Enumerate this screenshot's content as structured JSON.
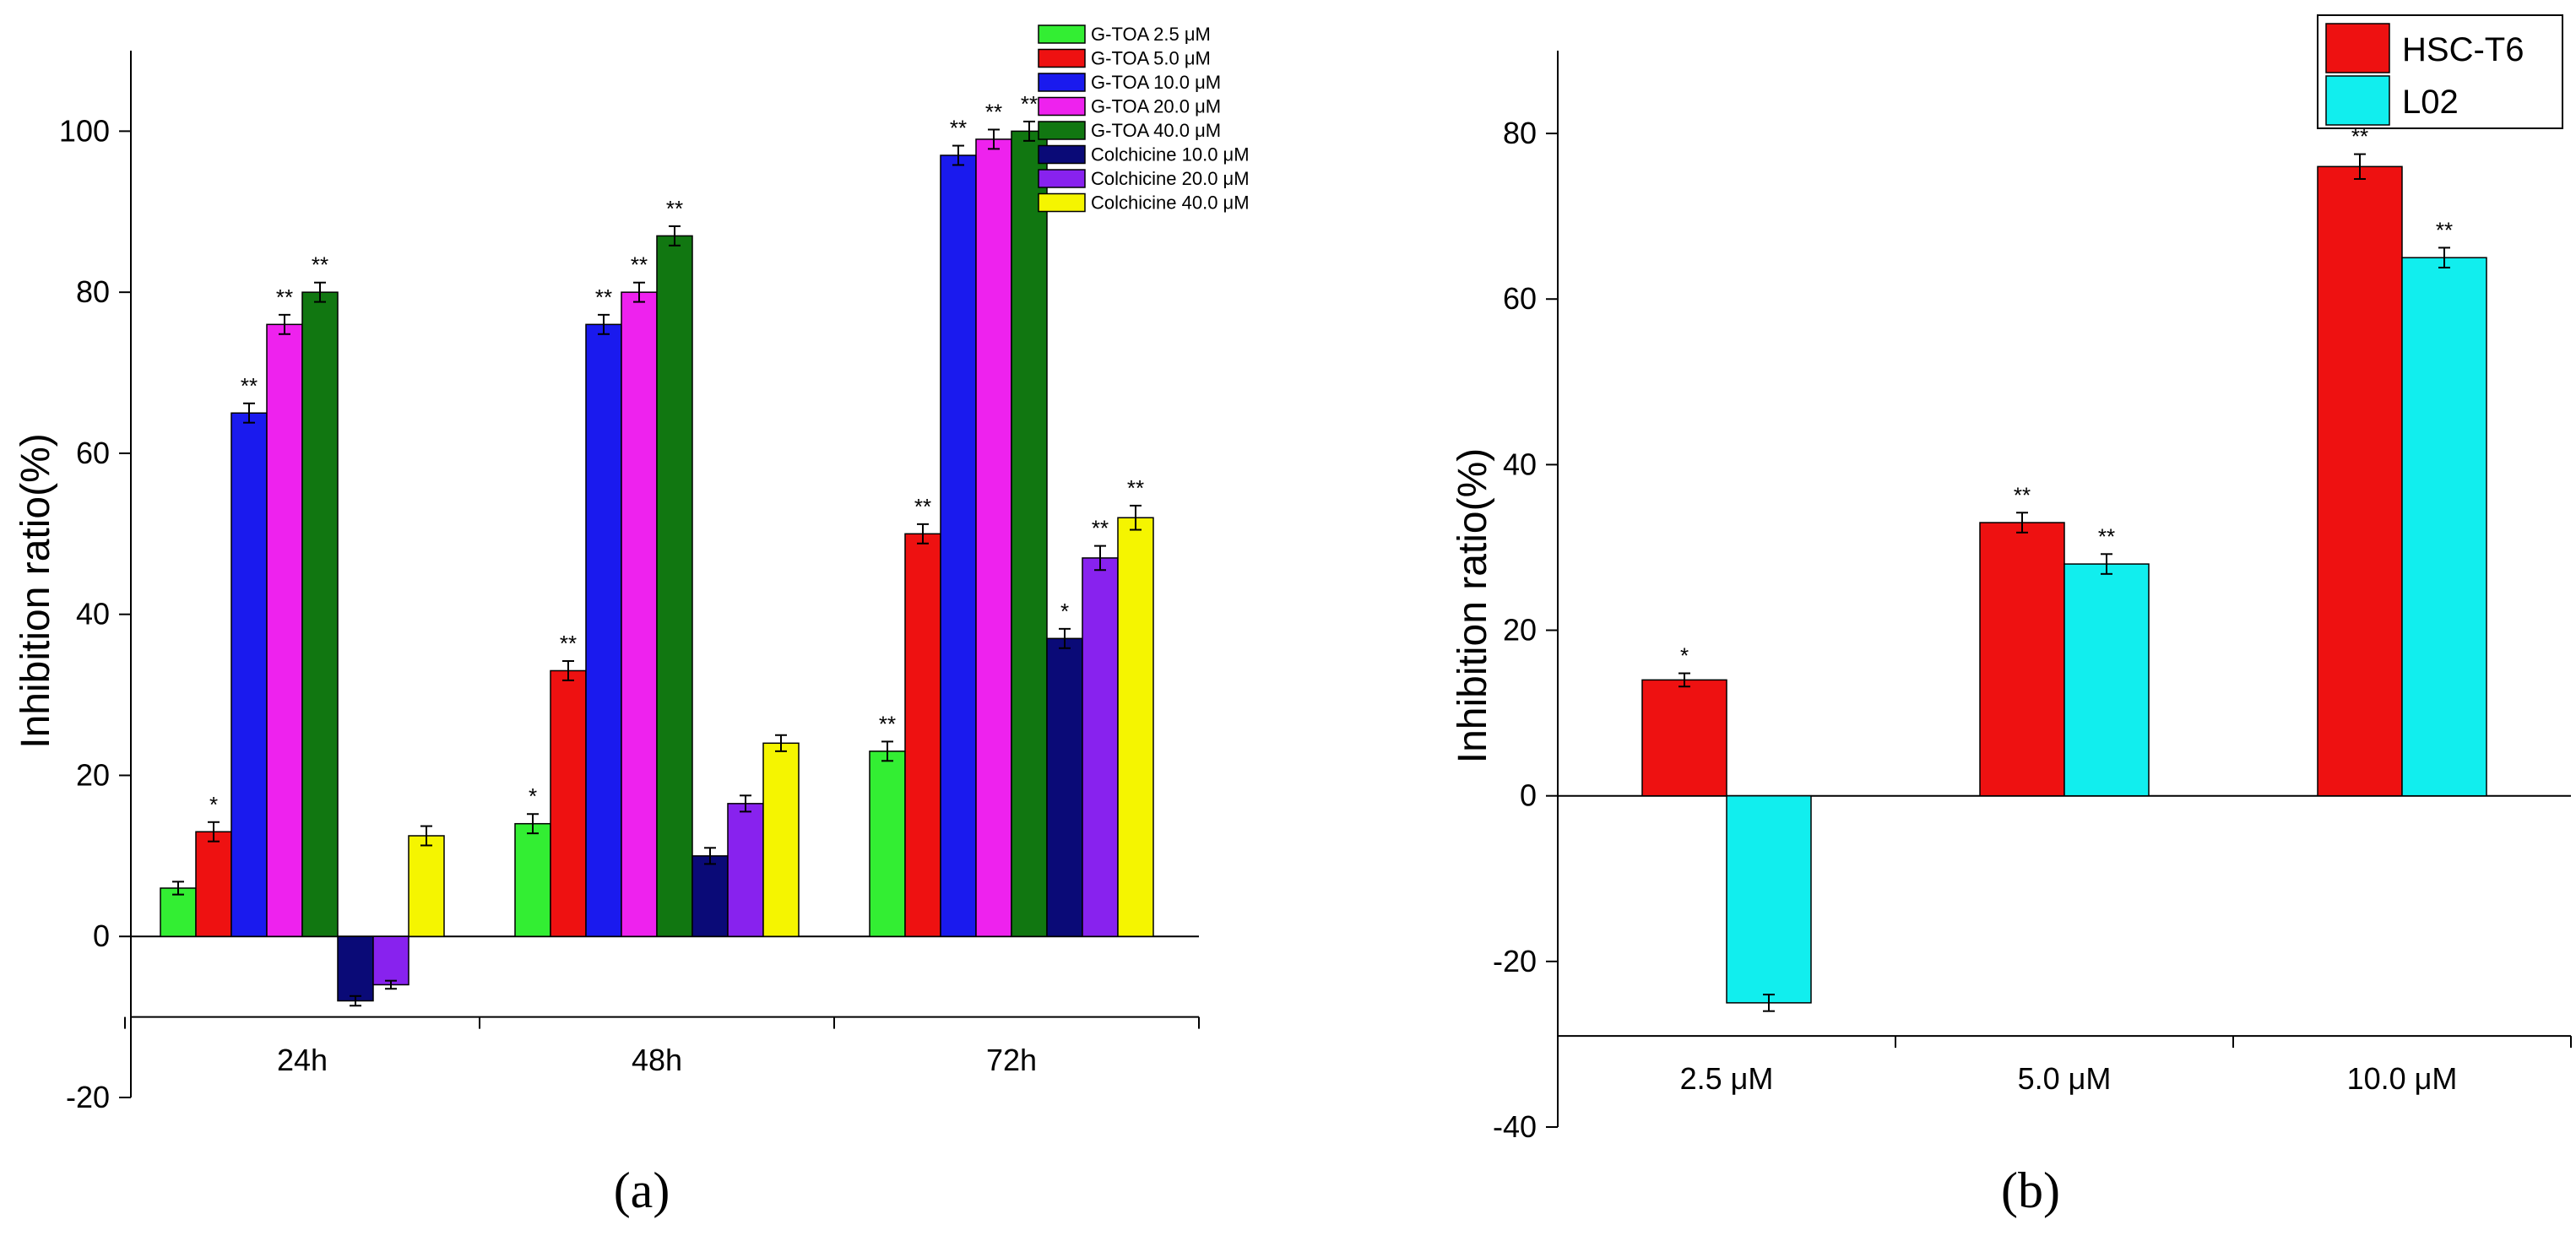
{
  "chart_data": [
    {
      "type": "bar",
      "panel_label": "(a)",
      "ylabel": "Inhibition ratio(%)",
      "xlabel": "",
      "ylim": [
        -20,
        110
      ],
      "yticks": [
        -20,
        0,
        20,
        40,
        60,
        80,
        100
      ],
      "categories": [
        "24h",
        "48h",
        "72h"
      ],
      "legend_position": "top-right",
      "series": [
        {
          "name": "G-TOA 2.5 μM",
          "color": "#33ee33",
          "values": [
            6,
            14,
            23
          ],
          "errors": [
            0.8,
            1.2,
            1.2
          ],
          "stars": [
            "",
            "*",
            "**"
          ]
        },
        {
          "name": "G-TOA 5.0 μM",
          "color": "#ee1111",
          "values": [
            13,
            33,
            50
          ],
          "errors": [
            1.2,
            1.2,
            1.2
          ],
          "stars": [
            "*",
            "**",
            "**"
          ]
        },
        {
          "name": "G-TOA 10.0 μM",
          "color": "#1a1aee",
          "values": [
            65,
            76,
            97
          ],
          "errors": [
            1.2,
            1.2,
            1.2
          ],
          "stars": [
            "**",
            "**",
            "**"
          ]
        },
        {
          "name": "G-TOA 20.0 μM",
          "color": "#ee22ee",
          "values": [
            76,
            80,
            99
          ],
          "errors": [
            1.2,
            1.2,
            1.2
          ],
          "stars": [
            "**",
            "**",
            "**"
          ]
        },
        {
          "name": "G-TOA 40.0 μM",
          "color": "#117711",
          "values": [
            80,
            87,
            100
          ],
          "errors": [
            1.2,
            1.2,
            1.2
          ],
          "stars": [
            "**",
            "**",
            "**"
          ]
        },
        {
          "name": "Colchicine 10.0 μM",
          "color": "#0a0a77",
          "values": [
            -8,
            10,
            37
          ],
          "errors": [
            0.6,
            1.0,
            1.2
          ],
          "stars": [
            "",
            "",
            "*"
          ]
        },
        {
          "name": "Colchicine 20.0 μM",
          "color": "#8822ee",
          "values": [
            -6,
            16.5,
            47
          ],
          "errors": [
            0.5,
            1.0,
            1.5
          ],
          "stars": [
            "",
            "",
            "**"
          ]
        },
        {
          "name": "Colchicine 40.0 μM",
          "color": "#f5f500",
          "values": [
            12.5,
            24,
            52
          ],
          "errors": [
            1.2,
            1.0,
            1.5
          ],
          "stars": [
            "",
            "",
            "**"
          ]
        }
      ]
    },
    {
      "type": "bar",
      "panel_label": "(b)",
      "ylabel": "Inhibition ratio(%)",
      "xlabel": "",
      "ylim": [
        -40,
        90
      ],
      "yticks": [
        -40,
        -20,
        0,
        20,
        40,
        60,
        80
      ],
      "categories": [
        "2.5 μM",
        "5.0 μM",
        "10.0 μM"
      ],
      "legend_position": "top-right",
      "series": [
        {
          "name": "HSC-T6",
          "color": "#ee1111",
          "values": [
            14,
            33,
            76
          ],
          "errors": [
            0.8,
            1.2,
            1.5
          ],
          "stars": [
            "*",
            "**",
            "**"
          ]
        },
        {
          "name": "L02",
          "color": "#11eeee",
          "values": [
            -25,
            28,
            65
          ],
          "errors": [
            1.0,
            1.2,
            1.2
          ],
          "stars": [
            "",
            "**",
            "**"
          ]
        }
      ]
    }
  ]
}
